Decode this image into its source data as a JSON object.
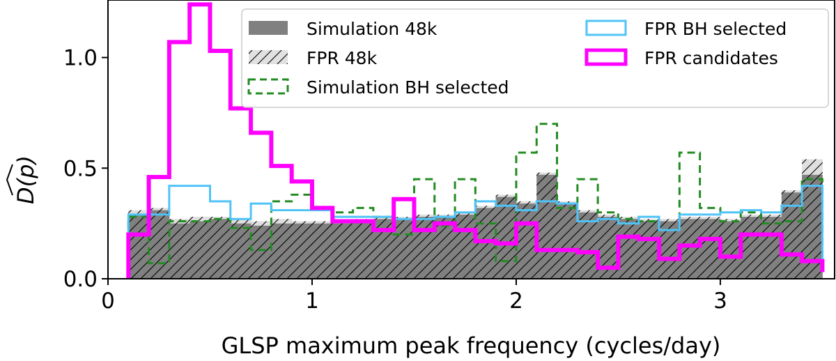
{
  "chart_data": {
    "type": "histogram",
    "xlabel": "GLSP maximum peak frequency (cycles/day)",
    "ylabel": "D(p)",
    "xlim": [
      0,
      3.56
    ],
    "ylim": [
      0,
      1.26
    ],
    "xticks": [
      0,
      1,
      2,
      3
    ],
    "yticks": [
      0.0,
      0.5,
      1.0
    ],
    "xtick_labels": [
      "0",
      "1",
      "2",
      "3"
    ],
    "ytick_labels": [
      "0.0",
      "0.5",
      "1.0"
    ],
    "grid": false,
    "legend_placement": "top-right",
    "bin_edges": [
      0.1,
      0.2,
      0.3,
      0.4,
      0.5,
      0.6,
      0.7,
      0.8,
      0.9,
      1.0,
      1.1,
      1.2,
      1.3,
      1.4,
      1.5,
      1.6,
      1.7,
      1.8,
      1.9,
      2.0,
      2.1,
      2.2,
      2.3,
      2.4,
      2.5,
      2.6,
      2.7,
      2.8,
      2.9,
      3.0,
      3.1,
      3.2,
      3.3,
      3.4,
      3.5
    ],
    "series": [
      {
        "name": "Simulation 48k",
        "style": "filled",
        "color": "#808080",
        "values": [
          0.29,
          0.31,
          0.25,
          0.26,
          0.27,
          0.25,
          0.24,
          0.25,
          0.25,
          0.25,
          0.25,
          0.26,
          0.27,
          0.27,
          0.28,
          0.28,
          0.29,
          0.32,
          0.37,
          0.34,
          0.47,
          0.34,
          0.3,
          0.28,
          0.27,
          0.26,
          0.26,
          0.27,
          0.27,
          0.26,
          0.28,
          0.28,
          0.39,
          0.47,
          0.12
        ]
      },
      {
        "name": "FPR 48k",
        "style": "hatched",
        "color": "#d9d9d9",
        "values": [
          0.31,
          0.32,
          0.27,
          0.28,
          0.28,
          0.27,
          0.26,
          0.27,
          0.26,
          0.26,
          0.26,
          0.27,
          0.28,
          0.28,
          0.29,
          0.29,
          0.3,
          0.33,
          0.38,
          0.35,
          0.48,
          0.35,
          0.31,
          0.29,
          0.28,
          0.27,
          0.27,
          0.28,
          0.28,
          0.27,
          0.29,
          0.29,
          0.4,
          0.54,
          0.14
        ]
      },
      {
        "name": "Simulation BH selected",
        "style": "dashed-step",
        "color": "#228b22",
        "values": [
          0.28,
          0.07,
          0.26,
          0.26,
          0.27,
          0.23,
          0.13,
          0.35,
          0.38,
          0.32,
          0.3,
          0.32,
          0.28,
          0.2,
          0.45,
          0.24,
          0.45,
          0.25,
          0.08,
          0.57,
          0.7,
          0.32,
          0.45,
          0.3,
          0.27,
          0.26,
          0.22,
          0.57,
          0.32,
          0.26,
          0.3,
          0.25,
          0.26,
          0.45,
          0.05
        ]
      },
      {
        "name": "FPR BH selected",
        "style": "step",
        "color": "#4fc3f7",
        "values": [
          0.29,
          0.29,
          0.42,
          0.42,
          0.35,
          0.27,
          0.34,
          0.31,
          0.31,
          0.31,
          0.28,
          0.28,
          0.28,
          0.27,
          0.27,
          0.28,
          0.3,
          0.35,
          0.33,
          0.31,
          0.35,
          0.34,
          0.26,
          0.27,
          0.25,
          0.28,
          0.22,
          0.29,
          0.29,
          0.3,
          0.31,
          0.3,
          0.33,
          0.42,
          0.05
        ]
      },
      {
        "name": "FPR candidates",
        "style": "thick-step",
        "color": "#ff00ff",
        "values": [
          0.2,
          0.46,
          1.07,
          1.24,
          1.03,
          0.77,
          0.66,
          0.51,
          0.44,
          0.32,
          0.26,
          0.26,
          0.22,
          0.36,
          0.22,
          0.25,
          0.22,
          0.17,
          0.16,
          0.25,
          0.13,
          0.13,
          0.12,
          0.05,
          0.19,
          0.18,
          0.09,
          0.15,
          0.18,
          0.1,
          0.2,
          0.2,
          0.11,
          0.08,
          0.03
        ]
      }
    ]
  }
}
